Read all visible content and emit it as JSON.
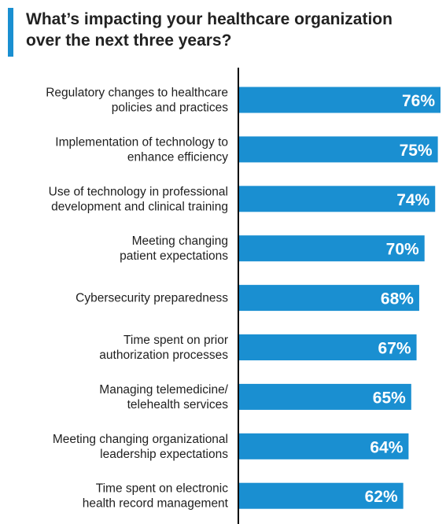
{
  "title_line1": "What’s impacting your healthcare organization",
  "title_line2": "over the next three years?",
  "colors": {
    "accent": "#1a8fd1",
    "bar": "#1a8fd1",
    "axis": "#000000",
    "value_text": "#ffffff",
    "label_text": "#1f1f1f"
  },
  "chart_data": {
    "type": "bar",
    "orientation": "horizontal",
    "categories": [
      [
        "Regulatory changes to healthcare",
        "policies and practices"
      ],
      [
        "Implementation of technology to",
        "enhance efficiency"
      ],
      [
        "Use of technology in professional",
        "development and clinical training"
      ],
      [
        "Meeting changing",
        "patient expectations"
      ],
      [
        "Cybersecurity preparedness"
      ],
      [
        "Time spent on prior",
        "authorization processes"
      ],
      [
        "Managing telemedicine/",
        "telehealth services"
      ],
      [
        "Meeting changing organizational",
        "leadership expectations"
      ],
      [
        "Time spent on electronic",
        "health record management"
      ]
    ],
    "values": [
      76,
      75,
      74,
      70,
      68,
      67,
      65,
      64,
      62
    ],
    "value_labels": [
      "76%",
      "75%",
      "74%",
      "70%",
      "68%",
      "67%",
      "65%",
      "64%",
      "62%"
    ],
    "unit": "%",
    "grid": false
  }
}
